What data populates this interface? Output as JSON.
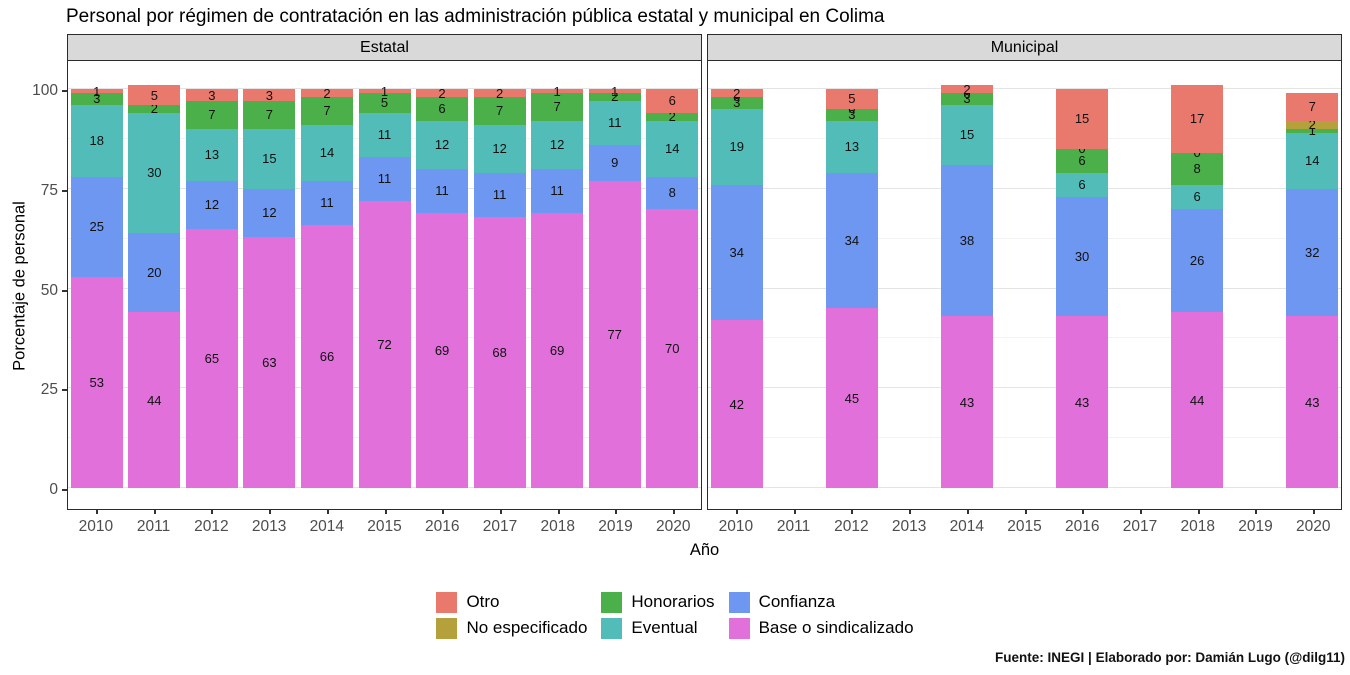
{
  "title": "Personal por régimen de contratación en las administración pública estatal y municipal en Colima",
  "caption": "Fuente: INEGI | Elaborado por: Damián Lugo (@dilg11)",
  "axes": {
    "x_label": "Año",
    "y_label": "Porcentaje de personal",
    "y_ticks": [
      0,
      25,
      50,
      75,
      100
    ],
    "y_minor_ticks": [
      12.5,
      37.5,
      62.5,
      87.5
    ],
    "x_ticks": [
      "2010",
      "2011",
      "2012",
      "2013",
      "2014",
      "2015",
      "2016",
      "2017",
      "2018",
      "2019",
      "2020"
    ]
  },
  "series": {
    "base": {
      "label": "Base o sindicalizado",
      "color": "#E170DA"
    },
    "confianza": {
      "label": "Confianza",
      "color": "#6E97F1"
    },
    "eventual": {
      "label": "Eventual",
      "color": "#52BDB8"
    },
    "honorarios": {
      "label": "Honorarios",
      "color": "#4CB04A"
    },
    "no_especificado": {
      "label": "No especificado",
      "color": "#B5A13C"
    },
    "otro": {
      "label": "Otro",
      "color": "#E8796C"
    }
  },
  "stack_order": [
    "base",
    "confianza",
    "eventual",
    "honorarios",
    "no_especificado",
    "otro"
  ],
  "legend": {
    "columns": [
      [
        "otro",
        "no_especificado"
      ],
      [
        "honorarios",
        "eventual"
      ],
      [
        "confianza",
        "base"
      ]
    ]
  },
  "panel_style": {
    "strip_bg": "#D9D9D9",
    "grid_major": "#E4E4E4",
    "grid_minor": "#F2F2F2",
    "border": "#2B2B2B",
    "axis_text": "#4D4D4D"
  },
  "chart_data": {
    "type": "bar",
    "stacked": true,
    "value_unit": "percent",
    "ylim": [
      0,
      100
    ],
    "facets": [
      {
        "name": "Estatal",
        "bars": [
          {
            "year": "2010",
            "values": {
              "base": 53,
              "confianza": 25,
              "eventual": 18,
              "honorarios": 3,
              "no_especificado": null,
              "otro": 1
            }
          },
          {
            "year": "2011",
            "values": {
              "base": 44,
              "confianza": 20,
              "eventual": 30,
              "honorarios": 2,
              "no_especificado": null,
              "otro": 5
            }
          },
          {
            "year": "2012",
            "values": {
              "base": 65,
              "confianza": 12,
              "eventual": 13,
              "honorarios": 7,
              "no_especificado": null,
              "otro": 3
            }
          },
          {
            "year": "2013",
            "values": {
              "base": 63,
              "confianza": 12,
              "eventual": 15,
              "honorarios": 7,
              "no_especificado": null,
              "otro": 3
            }
          },
          {
            "year": "2014",
            "values": {
              "base": 66,
              "confianza": 11,
              "eventual": 14,
              "honorarios": 7,
              "no_especificado": null,
              "otro": 2
            }
          },
          {
            "year": "2015",
            "values": {
              "base": 72,
              "confianza": 11,
              "eventual": 11,
              "honorarios": 5,
              "no_especificado": null,
              "otro": 1
            }
          },
          {
            "year": "2016",
            "values": {
              "base": 69,
              "confianza": 11,
              "eventual": 12,
              "honorarios": 6,
              "no_especificado": null,
              "otro": 2
            }
          },
          {
            "year": "2017",
            "values": {
              "base": 68,
              "confianza": 11,
              "eventual": 12,
              "honorarios": 7,
              "no_especificado": null,
              "otro": 2
            }
          },
          {
            "year": "2018",
            "values": {
              "base": 69,
              "confianza": 11,
              "eventual": 12,
              "honorarios": 7,
              "no_especificado": null,
              "otro": 1
            }
          },
          {
            "year": "2019",
            "values": {
              "base": 77,
              "confianza": 9,
              "eventual": 11,
              "honorarios": 2,
              "no_especificado": null,
              "otro": 1
            }
          },
          {
            "year": "2020",
            "values": {
              "base": 70,
              "confianza": 8,
              "eventual": 14,
              "honorarios": 2,
              "no_especificado": null,
              "otro": 6
            }
          }
        ]
      },
      {
        "name": "Municipal",
        "bars": [
          {
            "year": "2010",
            "values": {
              "base": 42,
              "confianza": 34,
              "eventual": 19,
              "honorarios": 3,
              "no_especificado": 0,
              "otro": 2
            }
          },
          {
            "year": "2011",
            "values": null
          },
          {
            "year": "2012",
            "values": {
              "base": 45,
              "confianza": 34,
              "eventual": 13,
              "honorarios": 3,
              "no_especificado": 0,
              "otro": 5
            }
          },
          {
            "year": "2013",
            "values": null
          },
          {
            "year": "2014",
            "values": {
              "base": 43,
              "confianza": 38,
              "eventual": 15,
              "honorarios": 3,
              "no_especificado": 0,
              "otro": 2
            }
          },
          {
            "year": "2015",
            "values": null
          },
          {
            "year": "2016",
            "values": {
              "base": 43,
              "confianza": 30,
              "eventual": 6,
              "honorarios": 6,
              "no_especificado": 0,
              "otro": 15
            }
          },
          {
            "year": "2017",
            "values": null
          },
          {
            "year": "2018",
            "values": {
              "base": 44,
              "confianza": 26,
              "eventual": 6,
              "honorarios": 8,
              "no_especificado": 0,
              "otro": 17
            }
          },
          {
            "year": "2019",
            "values": null
          },
          {
            "year": "2020",
            "values": {
              "base": 43,
              "confianza": 32,
              "eventual": 14,
              "honorarios": 1,
              "no_especificado": 2,
              "otro": 7
            }
          }
        ]
      }
    ]
  }
}
